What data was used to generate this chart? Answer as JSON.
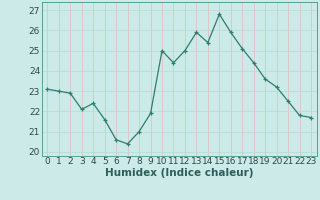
{
  "x": [
    0,
    1,
    2,
    3,
    4,
    5,
    6,
    7,
    8,
    9,
    10,
    11,
    12,
    13,
    14,
    15,
    16,
    17,
    18,
    19,
    20,
    21,
    22,
    23
  ],
  "y": [
    23.1,
    23.0,
    22.9,
    22.1,
    22.4,
    21.6,
    20.6,
    20.4,
    21.0,
    21.9,
    25.0,
    24.4,
    25.0,
    25.9,
    25.4,
    26.8,
    25.9,
    25.1,
    24.4,
    23.6,
    23.2,
    22.5,
    21.8,
    21.7
  ],
  "line_color": "#2e7d6e",
  "marker": "+",
  "marker_color": "#2e7d6e",
  "bg_color": "#cceae7",
  "grid_color_h": "#b8dada",
  "grid_color_v": "#e8b8b8",
  "xlabel": "Humidex (Indice chaleur)",
  "ylabel_ticks": [
    20,
    21,
    22,
    23,
    24,
    25,
    26,
    27
  ],
  "ylim": [
    19.8,
    27.4
  ],
  "xlim": [
    -0.5,
    23.5
  ],
  "xtick_labels": [
    "0",
    "1",
    "2",
    "3",
    "4",
    "5",
    "6",
    "7",
    "8",
    "9",
    "10",
    "11",
    "12",
    "13",
    "14",
    "15",
    "16",
    "17",
    "18",
    "19",
    "20",
    "21",
    "22",
    "23"
  ],
  "axis_fontsize": 6.5,
  "label_fontsize": 7.5
}
